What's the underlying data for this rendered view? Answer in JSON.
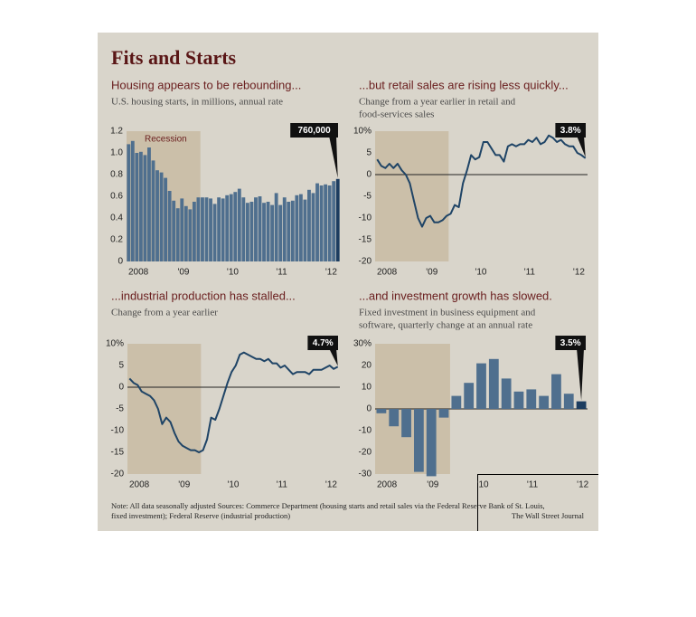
{
  "title": "Fits and Starts",
  "footnote": [
    "Note: All data seasonally adjusted    Sources: Commerce Department (housing starts and retail sales via the Federal Reserve Bank of St. Louis,",
    "fixed investment); Federal Reserve (industrial production)"
  ],
  "credit": "The Wall Street Journal",
  "chart_data": [
    {
      "type": "bar",
      "title": "Housing appears to be rebounding...",
      "subtitle": [
        "U.S. housing starts, in millions, annual rate"
      ],
      "categories": [
        "2008",
        null,
        null,
        null,
        null,
        null,
        null,
        null,
        null,
        null,
        null,
        null,
        "'09",
        null,
        null,
        null,
        null,
        null,
        null,
        null,
        null,
        null,
        null,
        null,
        "'10",
        null,
        null,
        null,
        null,
        null,
        null,
        null,
        null,
        null,
        null,
        null,
        "'11",
        null,
        null,
        null,
        null,
        null,
        null,
        null,
        null,
        null,
        null,
        null,
        "'12",
        null,
        null,
        null
      ],
      "values": [
        1.08,
        1.11,
        1.0,
        1.01,
        0.98,
        1.05,
        0.93,
        0.84,
        0.82,
        0.77,
        0.65,
        0.56,
        0.49,
        0.58,
        0.51,
        0.48,
        0.55,
        0.59,
        0.59,
        0.59,
        0.58,
        0.53,
        0.59,
        0.58,
        0.61,
        0.62,
        0.64,
        0.67,
        0.59,
        0.54,
        0.55,
        0.59,
        0.6,
        0.54,
        0.55,
        0.52,
        0.63,
        0.52,
        0.59,
        0.55,
        0.56,
        0.61,
        0.62,
        0.57,
        0.66,
        0.63,
        0.72,
        0.7,
        0.71,
        0.7,
        0.74,
        0.76
      ],
      "color": "#4f6f8e",
      "highlight_color": "#1d3d60",
      "ylim": [
        0,
        1.2
      ],
      "yticks": [
        0,
        0.2,
        0.4,
        0.6,
        0.8,
        {
          "value": 1,
          "label": "1.0"
        },
        1.2
      ],
      "grid": false,
      "zero_line": false,
      "shaded_span": [
        0,
        18
      ],
      "shade_color": "#cbbfa9",
      "shade_label": "Recession",
      "annotation": "760,000"
    },
    {
      "type": "line",
      "title": "...but retail sales are rising less quickly...",
      "subtitle": [
        "Change from a year earlier in retail and",
        "food-services sales"
      ],
      "categories": [
        "2008",
        null,
        null,
        null,
        null,
        null,
        null,
        null,
        null,
        null,
        null,
        null,
        "'09",
        null,
        null,
        null,
        null,
        null,
        null,
        null,
        null,
        null,
        null,
        null,
        "'10",
        null,
        null,
        null,
        null,
        null,
        null,
        null,
        null,
        null,
        null,
        null,
        "'11",
        null,
        null,
        null,
        null,
        null,
        null,
        null,
        null,
        null,
        null,
        null,
        "'12",
        null,
        null,
        null
      ],
      "values": [
        3.5,
        2,
        1.5,
        2.5,
        1.5,
        2.5,
        1,
        0,
        -2,
        -6,
        -10,
        -12,
        -10,
        -9.5,
        -11,
        -11,
        -10.5,
        -9.5,
        -9,
        -7,
        -7.5,
        -2,
        1,
        4.5,
        3.5,
        4,
        7.5,
        7.5,
        6,
        4.5,
        4.5,
        3,
        6.5,
        7,
        6.5,
        7,
        7,
        8,
        7.5,
        8.5,
        7,
        7.5,
        9,
        8.5,
        7.5,
        8,
        7,
        6.5,
        6.5,
        5,
        4.5,
        3.8
      ],
      "color": "#1f4466",
      "ylim": [
        -20,
        10
      ],
      "yticks": [
        {
          "value": 10,
          "label": "10%"
        },
        5,
        0,
        -5,
        -10,
        -15,
        -20
      ],
      "grid": false,
      "zero_line": true,
      "shaded_span": [
        0,
        18
      ],
      "shade_color": "#cbbfa9",
      "annotation": "3.8%"
    },
    {
      "type": "line",
      "title": "...industrial production has stalled...",
      "subtitle": [
        "Change from a year earlier"
      ],
      "categories": [
        "2008",
        null,
        null,
        null,
        null,
        null,
        null,
        null,
        null,
        null,
        null,
        null,
        "'09",
        null,
        null,
        null,
        null,
        null,
        null,
        null,
        null,
        null,
        null,
        null,
        "'10",
        null,
        null,
        null,
        null,
        null,
        null,
        null,
        null,
        null,
        null,
        null,
        "'11",
        null,
        null,
        null,
        null,
        null,
        null,
        null,
        null,
        null,
        null,
        null,
        "'12",
        null,
        null,
        null
      ],
      "values": [
        2,
        1,
        0.5,
        -1,
        -1.5,
        -2,
        -3,
        -5,
        -8.5,
        -7,
        -8,
        -10.5,
        -12.5,
        -13.5,
        -14,
        -14.5,
        -14.5,
        -15,
        -14.5,
        -12,
        -7,
        -7.5,
        -5,
        -2,
        1,
        3.5,
        5,
        7.5,
        8,
        7.5,
        7,
        6.5,
        6.5,
        6,
        6.5,
        5.5,
        5.5,
        4.5,
        5,
        4,
        3,
        3.5,
        3.5,
        3.5,
        3,
        4,
        4,
        4,
        4.5,
        5,
        4.2,
        4.7
      ],
      "color": "#1f4466",
      "ylim": [
        -20,
        10
      ],
      "yticks": [
        {
          "value": 10,
          "label": "10%"
        },
        5,
        0,
        -5,
        -10,
        -15,
        -20
      ],
      "grid": false,
      "zero_line": true,
      "shaded_span": [
        0,
        18
      ],
      "shade_color": "#cbbfa9",
      "annotation": "4.7%"
    },
    {
      "type": "bar",
      "title": "...and investment growth has slowed.",
      "subtitle": [
        "Fixed investment in business equipment and",
        "software, quarterly change at an annual rate"
      ],
      "categories": [
        "2008",
        null,
        null,
        null,
        "'09",
        null,
        null,
        null,
        "'10",
        null,
        null,
        null,
        "'11",
        null,
        null,
        null,
        "'12"
      ],
      "values": [
        -2,
        -8,
        -13,
        -29,
        -31,
        -4,
        6,
        12,
        21,
        23,
        14,
        8,
        9,
        6,
        16,
        7,
        3.5
      ],
      "color": "#4f6f8e",
      "highlight_color": "#1d3d60",
      "ylim": [
        -30,
        30
      ],
      "yticks": [
        {
          "value": 30,
          "label": "30%"
        },
        20,
        10,
        0,
        -10,
        -20,
        -30
      ],
      "grid": false,
      "zero_line": true,
      "shaded_span": [
        0,
        6
      ],
      "shade_color": "#cbbfa9",
      "annotation": "3.5%"
    }
  ]
}
